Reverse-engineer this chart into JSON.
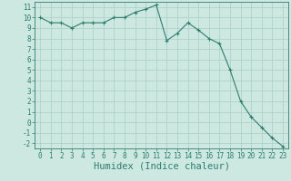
{
  "x": [
    0,
    1,
    2,
    3,
    4,
    5,
    6,
    7,
    8,
    9,
    10,
    11,
    12,
    13,
    14,
    15,
    16,
    17,
    18,
    19,
    20,
    21,
    22,
    23
  ],
  "y": [
    10.0,
    9.5,
    9.5,
    9.0,
    9.5,
    9.5,
    9.5,
    10.0,
    10.0,
    10.5,
    10.8,
    11.2,
    7.8,
    8.5,
    9.5,
    8.8,
    8.0,
    7.5,
    5.0,
    2.0,
    0.5,
    -0.5,
    -1.5,
    -2.3
  ],
  "title": "",
  "xlabel": "Humidex (Indice chaleur)",
  "ylabel": "",
  "xlim": [
    -0.5,
    23.5
  ],
  "ylim": [
    -2.5,
    11.5
  ],
  "yticks": [
    -2,
    -1,
    0,
    1,
    2,
    3,
    4,
    5,
    6,
    7,
    8,
    9,
    10,
    11
  ],
  "xticks": [
    0,
    1,
    2,
    3,
    4,
    5,
    6,
    7,
    8,
    9,
    10,
    11,
    12,
    13,
    14,
    15,
    16,
    17,
    18,
    19,
    20,
    21,
    22,
    23
  ],
  "line_color": "#2e7d6e",
  "marker": "+",
  "bg_color": "#cce8e0",
  "grid_color": "#aacec6",
  "tick_label_fontsize": 5.5,
  "xlabel_fontsize": 7.5,
  "linewidth": 0.8,
  "markersize": 3.5,
  "markeredgewidth": 0.8
}
